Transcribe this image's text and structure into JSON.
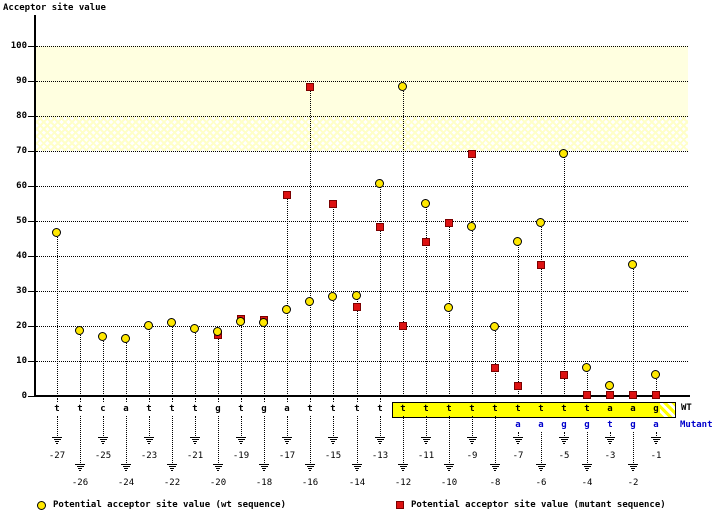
{
  "title": "Acceptor site value",
  "colors": {
    "background": "#ffffff",
    "wt_marker_fill": "#ffe800",
    "wt_marker_border": "#000000",
    "mutant_marker_fill": "#dd1111",
    "mutant_marker_border": "#7a0000",
    "band_solid": "#ffffe0",
    "wt_box_fill": "#ffff00",
    "mutant_text": "#0000cc",
    "grid": "#000000"
  },
  "y_axis": {
    "label": "Acceptor site value",
    "tick_values": [
      0,
      10,
      20,
      30,
      40,
      50,
      60,
      70,
      80,
      90,
      100
    ]
  },
  "sequence_panel": {
    "wt_label": "WT",
    "mutant_label": "Mutant",
    "wt_box_range": [
      -12,
      -1
    ]
  },
  "legend": {
    "wt": "Potential acceptor site value (wt sequence)",
    "mutant": "Potential acceptor site value (mutant sequence)"
  },
  "chart_data": {
    "type": "scatter",
    "title": "Acceptor site value",
    "xlabel": "",
    "ylabel": "Acceptor site value",
    "ylim": [
      0,
      100
    ],
    "grid": "dotted-horizontal",
    "legend_position": "bottom",
    "highlight_bands": [
      {
        "from": 80,
        "to": 100,
        "style": "solid"
      },
      {
        "from": 70,
        "to": 80,
        "style": "hatched"
      }
    ],
    "x_positions": [
      -27,
      -26,
      -25,
      -24,
      -23,
      -22,
      -21,
      -20,
      -19,
      -18,
      -17,
      -16,
      -15,
      -14,
      -13,
      -12,
      -11,
      -10,
      -9,
      -8,
      -7,
      -6,
      -5,
      -4,
      -3,
      -2,
      -1
    ],
    "wt_sequence": [
      "t",
      "t",
      "c",
      "a",
      "t",
      "t",
      "t",
      "g",
      "t",
      "g",
      "a",
      "t",
      "t",
      "t",
      "t",
      "t",
      "t",
      "t",
      "t",
      "t",
      "t",
      "t",
      "t",
      "t",
      "a",
      "a",
      "g"
    ],
    "mutant_sequence": [
      null,
      null,
      null,
      null,
      null,
      null,
      null,
      null,
      null,
      null,
      null,
      null,
      null,
      null,
      null,
      null,
      null,
      null,
      null,
      null,
      "a",
      "a",
      "g",
      "g",
      "t",
      "g",
      "a"
    ],
    "series": [
      {
        "name": "Potential acceptor site value (wt sequence)",
        "marker": "circle",
        "color": "#ffe800",
        "values": [
          46.6,
          18.6,
          16.9,
          16.3,
          20.0,
          20.9,
          19.1,
          18.3,
          21.1,
          20.9,
          24.6,
          26.9,
          28.3,
          28.6,
          60.6,
          88.3,
          54.9,
          25.1,
          48.3,
          19.7,
          44.0,
          49.4,
          69.1,
          8.0,
          2.9,
          37.4,
          6.0
        ]
      },
      {
        "name": "Potential acceptor site value (mutant sequence)",
        "marker": "square",
        "color": "#dd1111",
        "values": [
          null,
          null,
          null,
          null,
          null,
          null,
          null,
          17.4,
          22.0,
          21.7,
          57.4,
          88.3,
          54.9,
          25.4,
          48.3,
          20.0,
          44.0,
          49.4,
          69.1,
          8.0,
          2.9,
          37.4,
          6.0,
          0.3,
          0.3,
          0.3,
          0.3
        ]
      }
    ]
  }
}
